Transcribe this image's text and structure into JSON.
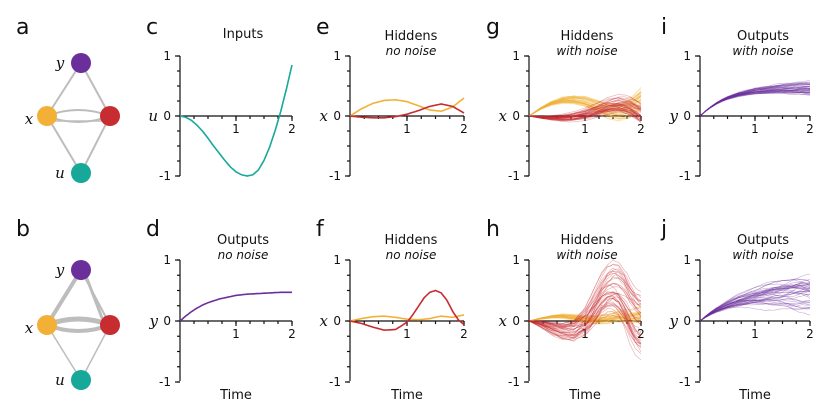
{
  "colors": {
    "u": "#18a89a",
    "x1": "#f2b136",
    "x2": "#c62c30",
    "y": "#6a2f9a",
    "edge": "#bdbdbd"
  },
  "networks": [
    {
      "letter": "a",
      "nodes": [
        "y",
        "x",
        "u"
      ],
      "edge_weights": "uniform"
    },
    {
      "letter": "b",
      "nodes": [
        "y",
        "x",
        "u"
      ],
      "edge_weights": "varied"
    }
  ],
  "chart_data": [
    {
      "id": "c",
      "type": "line",
      "title": "Inputs",
      "subtitle": "",
      "xlabel": "",
      "ylabel": "u",
      "xlim": [
        0,
        2
      ],
      "ylim": [
        -1,
        1
      ],
      "xticks": [
        "1",
        "2"
      ],
      "yticks": [
        "1",
        "0",
        "-1"
      ],
      "series": [
        {
          "color_key": "u",
          "x": [
            0,
            0.1,
            0.2,
            0.3,
            0.4,
            0.5,
            0.6,
            0.7,
            0.8,
            0.9,
            1.0,
            1.1,
            1.2,
            1.3,
            1.4,
            1.5,
            1.6,
            1.7,
            1.8,
            1.9,
            2.0
          ],
          "y": [
            0,
            -0.02,
            -0.07,
            -0.15,
            -0.25,
            -0.37,
            -0.5,
            -0.62,
            -0.74,
            -0.85,
            -0.93,
            -0.98,
            -1.0,
            -0.98,
            -0.9,
            -0.74,
            -0.52,
            -0.24,
            0.08,
            0.45,
            0.85
          ]
        }
      ]
    },
    {
      "id": "d",
      "type": "line",
      "title": "Outputs",
      "subtitle": "no noise",
      "xlabel": "Time",
      "ylabel": "y",
      "xlim": [
        0,
        2
      ],
      "ylim": [
        -1,
        1
      ],
      "xticks": [
        "1",
        "2"
      ],
      "yticks": [
        "1",
        "0",
        "-1"
      ],
      "series": [
        {
          "color_key": "y",
          "x": [
            0,
            0.1,
            0.2,
            0.3,
            0.4,
            0.5,
            0.6,
            0.7,
            0.8,
            0.9,
            1.0,
            1.2,
            1.4,
            1.6,
            1.8,
            2.0
          ],
          "y": [
            0,
            0.08,
            0.15,
            0.21,
            0.26,
            0.3,
            0.33,
            0.36,
            0.38,
            0.4,
            0.42,
            0.44,
            0.45,
            0.46,
            0.47,
            0.47
          ]
        }
      ]
    },
    {
      "id": "e",
      "type": "line",
      "title": "Hiddens",
      "subtitle": "no noise",
      "xlabel": "",
      "ylabel": "x",
      "xlim": [
        0,
        2
      ],
      "ylim": [
        -1,
        1
      ],
      "xticks": [
        "1",
        "2"
      ],
      "yticks": [
        "1",
        "0",
        "-1"
      ],
      "series": [
        {
          "color_key": "x1",
          "x": [
            0,
            0.2,
            0.4,
            0.6,
            0.8,
            1.0,
            1.2,
            1.4,
            1.6,
            1.8,
            2.0
          ],
          "y": [
            0,
            0.12,
            0.21,
            0.26,
            0.27,
            0.24,
            0.17,
            0.1,
            0.08,
            0.15,
            0.3
          ]
        },
        {
          "color_key": "x2",
          "x": [
            0,
            0.2,
            0.4,
            0.6,
            0.8,
            1.0,
            1.2,
            1.4,
            1.6,
            1.8,
            2.0
          ],
          "y": [
            0,
            -0.02,
            -0.03,
            -0.03,
            -0.01,
            0.03,
            0.09,
            0.16,
            0.2,
            0.16,
            0.05
          ]
        }
      ]
    },
    {
      "id": "f",
      "type": "line",
      "title": "Hiddens",
      "subtitle": "no noise",
      "xlabel": "Time",
      "ylabel": "x",
      "xlim": [
        0,
        2
      ],
      "ylim": [
        -1,
        1
      ],
      "xticks": [
        "1",
        "2"
      ],
      "yticks": [
        "1",
        "0",
        "-1"
      ],
      "series": [
        {
          "color_key": "x1",
          "x": [
            0,
            0.2,
            0.4,
            0.6,
            0.8,
            1.0,
            1.2,
            1.4,
            1.6,
            1.8,
            2.0
          ],
          "y": [
            0,
            0.04,
            0.07,
            0.08,
            0.06,
            0.03,
            0.02,
            0.04,
            0.08,
            0.06,
            0.1
          ]
        },
        {
          "color_key": "x2",
          "x": [
            0,
            0.2,
            0.4,
            0.6,
            0.8,
            1.0,
            1.1,
            1.2,
            1.3,
            1.4,
            1.5,
            1.6,
            1.7,
            1.8,
            1.9,
            2.0
          ],
          "y": [
            0,
            -0.04,
            -0.1,
            -0.15,
            -0.14,
            -0.02,
            0.1,
            0.24,
            0.38,
            0.47,
            0.5,
            0.46,
            0.34,
            0.16,
            0.02,
            -0.06
          ]
        }
      ]
    },
    {
      "id": "g",
      "type": "line",
      "title": "Hiddens",
      "subtitle": "with noise",
      "xlabel": "",
      "ylabel": "x",
      "xlim": [
        0,
        2
      ],
      "ylim": [
        -1,
        1
      ],
      "xticks": [
        "1",
        "2"
      ],
      "yticks": [
        "1",
        "0",
        "-1"
      ],
      "noise": {
        "x1": 0.08,
        "x2": 0.08,
        "n": 40
      },
      "series": [
        {
          "color_key": "x1",
          "x": [
            0,
            0.2,
            0.4,
            0.6,
            0.8,
            1.0,
            1.2,
            1.4,
            1.6,
            1.8,
            2.0
          ],
          "y": [
            0,
            0.12,
            0.21,
            0.26,
            0.27,
            0.24,
            0.17,
            0.1,
            0.08,
            0.15,
            0.3
          ]
        },
        {
          "color_key": "x2",
          "x": [
            0,
            0.2,
            0.4,
            0.6,
            0.8,
            1.0,
            1.2,
            1.4,
            1.6,
            1.8,
            2.0
          ],
          "y": [
            0,
            -0.02,
            -0.03,
            -0.03,
            -0.01,
            0.03,
            0.09,
            0.16,
            0.2,
            0.16,
            0.05
          ]
        }
      ]
    },
    {
      "id": "h",
      "type": "line",
      "title": "Hiddens",
      "subtitle": "with noise",
      "xlabel": "Time",
      "ylabel": "x",
      "xlim": [
        0,
        2
      ],
      "ylim": [
        -1,
        1
      ],
      "xticks": [
        "1",
        "2"
      ],
      "yticks": [
        "1",
        "0",
        "-1"
      ],
      "noise": {
        "x1": 0.05,
        "x2": 0.22,
        "n": 40
      },
      "series": [
        {
          "color_key": "x1",
          "x": [
            0,
            0.2,
            0.4,
            0.6,
            0.8,
            1.0,
            1.2,
            1.4,
            1.6,
            1.8,
            2.0
          ],
          "y": [
            0,
            0.04,
            0.07,
            0.08,
            0.06,
            0.03,
            0.02,
            0.04,
            0.08,
            0.06,
            0.1
          ]
        },
        {
          "color_key": "x2",
          "x": [
            0,
            0.2,
            0.4,
            0.6,
            0.8,
            1.0,
            1.1,
            1.2,
            1.3,
            1.4,
            1.5,
            1.6,
            1.7,
            1.8,
            1.9,
            2.0
          ],
          "y": [
            0,
            -0.04,
            -0.1,
            -0.15,
            -0.14,
            -0.02,
            0.1,
            0.24,
            0.38,
            0.47,
            0.5,
            0.46,
            0.34,
            0.16,
            0.02,
            -0.06
          ]
        }
      ]
    },
    {
      "id": "i",
      "type": "line",
      "title": "Outputs",
      "subtitle": "with noise",
      "xlabel": "",
      "ylabel": "y",
      "xlim": [
        0,
        2
      ],
      "ylim": [
        -1,
        1
      ],
      "xticks": [
        "1",
        "2"
      ],
      "yticks": [
        "1",
        "0",
        "-1"
      ],
      "noise": {
        "y": 0.05,
        "n": 40
      },
      "series": [
        {
          "color_key": "y",
          "x": [
            0,
            0.1,
            0.2,
            0.3,
            0.4,
            0.5,
            0.6,
            0.7,
            0.8,
            0.9,
            1.0,
            1.2,
            1.4,
            1.6,
            1.8,
            2.0
          ],
          "y": [
            0,
            0.08,
            0.15,
            0.21,
            0.26,
            0.3,
            0.33,
            0.36,
            0.38,
            0.4,
            0.42,
            0.44,
            0.46,
            0.47,
            0.48,
            0.48
          ]
        }
      ]
    },
    {
      "id": "j",
      "type": "line",
      "title": "Outputs",
      "subtitle": "with noise",
      "xlabel": "Time",
      "ylabel": "y",
      "xlim": [
        0,
        2
      ],
      "ylim": [
        -1,
        1
      ],
      "xticks": [
        "1",
        "2"
      ],
      "yticks": [
        "1",
        "0",
        "-1"
      ],
      "noise": {
        "y": 0.12,
        "n": 40
      },
      "series": [
        {
          "color_key": "y",
          "x": [
            0,
            0.1,
            0.2,
            0.3,
            0.4,
            0.5,
            0.6,
            0.7,
            0.8,
            0.9,
            1.0,
            1.2,
            1.4,
            1.6,
            1.8,
            2.0
          ],
          "y": [
            0,
            0.07,
            0.13,
            0.18,
            0.22,
            0.26,
            0.29,
            0.32,
            0.34,
            0.36,
            0.38,
            0.41,
            0.43,
            0.44,
            0.45,
            0.45
          ]
        }
      ]
    }
  ]
}
